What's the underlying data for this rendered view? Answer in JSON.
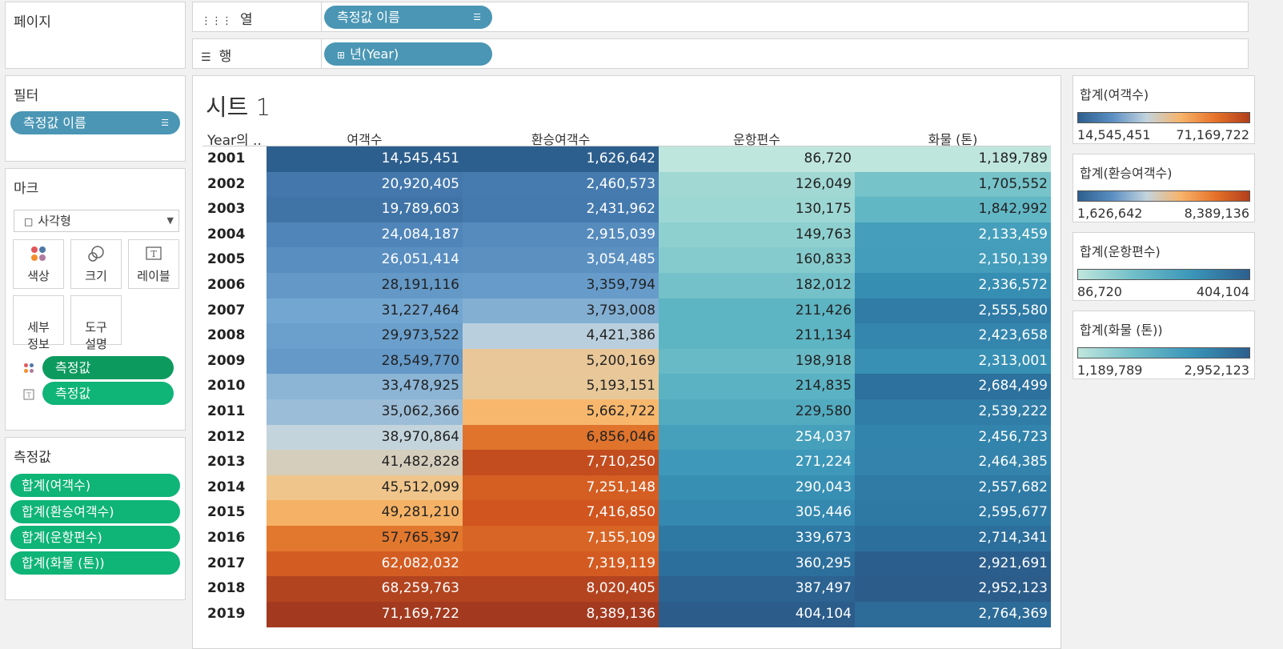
{
  "pages_label": "페이지",
  "columns_shelf": {
    "icon": "columns-icon",
    "label": "열",
    "pill": "측정값 이름"
  },
  "rows_shelf": {
    "icon": "rows-icon",
    "label": "행",
    "pill": "년(Year)"
  },
  "filters": {
    "title": "필터",
    "pill": "측정값 이름"
  },
  "marks": {
    "title": "마크",
    "type": "사각형",
    "buttons": {
      "color": "색상",
      "size": "크기",
      "label": "레이블",
      "detail": "세부\n정보",
      "tooltip": "도구\n설명"
    },
    "pills": [
      "측정값",
      "측정값"
    ]
  },
  "measure_values": {
    "title": "측정값",
    "pills": [
      "합계(여객수)",
      "합계(환승여객수)",
      "합계(운항편수)",
      "합계(화물 (톤))"
    ]
  },
  "sheet": {
    "title": "시트 1",
    "row_header_label": "Year의 ..",
    "columns": [
      "여객수",
      "환승여객수",
      "운항편수",
      "화물 (톤)"
    ]
  },
  "chart_data": {
    "type": "table",
    "title": "시트 1",
    "row_header_label": "Year의 ..",
    "columns": [
      "여객수",
      "환승여객수",
      "운항편수",
      "화물 (톤)"
    ],
    "rows": [
      {
        "year": "2001",
        "values": [
          "14,545,451",
          "1,626,642",
          "86,720",
          "1,189,789"
        ]
      },
      {
        "year": "2002",
        "values": [
          "20,920,405",
          "2,460,573",
          "126,049",
          "1,705,552"
        ]
      },
      {
        "year": "2003",
        "values": [
          "19,789,603",
          "2,431,962",
          "130,175",
          "1,842,992"
        ]
      },
      {
        "year": "2004",
        "values": [
          "24,084,187",
          "2,915,039",
          "149,763",
          "2,133,459"
        ]
      },
      {
        "year": "2005",
        "values": [
          "26,051,414",
          "3,054,485",
          "160,833",
          "2,150,139"
        ]
      },
      {
        "year": "2006",
        "values": [
          "28,191,116",
          "3,359,794",
          "182,012",
          "2,336,572"
        ]
      },
      {
        "year": "2007",
        "values": [
          "31,227,464",
          "3,793,008",
          "211,426",
          "2,555,580"
        ]
      },
      {
        "year": "2008",
        "values": [
          "29,973,522",
          "4,421,386",
          "211,134",
          "2,423,658"
        ]
      },
      {
        "year": "2009",
        "values": [
          "28,549,770",
          "5,200,169",
          "198,918",
          "2,313,001"
        ]
      },
      {
        "year": "2010",
        "values": [
          "33,478,925",
          "5,193,151",
          "214,835",
          "2,684,499"
        ]
      },
      {
        "year": "2011",
        "values": [
          "35,062,366",
          "5,662,722",
          "229,580",
          "2,539,222"
        ]
      },
      {
        "year": "2012",
        "values": [
          "38,970,864",
          "6,856,046",
          "254,037",
          "2,456,723"
        ]
      },
      {
        "year": "2013",
        "values": [
          "41,482,828",
          "7,710,250",
          "271,224",
          "2,464,385"
        ]
      },
      {
        "year": "2014",
        "values": [
          "45,512,099",
          "7,251,148",
          "290,043",
          "2,557,682"
        ]
      },
      {
        "year": "2015",
        "values": [
          "49,281,210",
          "7,416,850",
          "305,446",
          "2,595,677"
        ]
      },
      {
        "year": "2016",
        "values": [
          "57,765,397",
          "7,155,109",
          "339,673",
          "2,714,341"
        ]
      },
      {
        "year": "2017",
        "values": [
          "62,082,032",
          "7,319,119",
          "360,295",
          "2,921,691"
        ]
      },
      {
        "year": "2018",
        "values": [
          "68,259,763",
          "8,020,405",
          "387,497",
          "2,952,123"
        ]
      },
      {
        "year": "2019",
        "values": [
          "71,169,722",
          "8,389,136",
          "404,104",
          "2,764,369"
        ]
      }
    ],
    "color_scales": [
      {
        "palette": "diverging-blue-orange",
        "min": 14545451,
        "max": 71169722
      },
      {
        "palette": "diverging-blue-orange",
        "min": 1626642,
        "max": 8389136
      },
      {
        "palette": "sequential-teal-blue",
        "min": 86720,
        "max": 404104
      },
      {
        "palette": "sequential-teal-blue",
        "min": 1189789,
        "max": 2952123
      }
    ]
  },
  "legends": [
    {
      "title": "합계(여객수)",
      "min": "14,545,451",
      "max": "71,169,722",
      "gradient": "linear-gradient(to right,#2d5f8e,#5b8fc2,#c3d4de,#f7b36a,#e6722a,#b23f1c)"
    },
    {
      "title": "합계(환승여객수)",
      "min": "1,626,642",
      "max": "8,389,136",
      "gradient": "linear-gradient(to right,#2d5f8e,#5b8fc2,#c3d4de,#f7b36a,#e6722a,#b23f1c)"
    },
    {
      "title": "합계(운항편수)",
      "min": "86,720",
      "max": "404,104",
      "gradient": "linear-gradient(to right,#bfe6dd,#6fbdc8,#3a95b8,#2d5f8e)"
    },
    {
      "title": "합계(화물 (톤))",
      "min": "1,189,789",
      "max": "2,952,123",
      "gradient": "linear-gradient(to right,#bfe6dd,#6fbdc8,#3a95b8,#2d5f8e)"
    }
  ],
  "colors": {
    "pill_blue": "#4a96b4",
    "pill_green": "#0fb477",
    "pill_dark_green": "#0d9a5e"
  }
}
